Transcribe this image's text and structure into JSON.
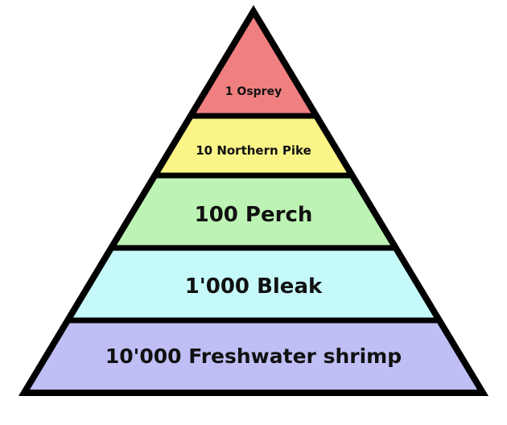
{
  "diagram": {
    "tiers": [
      {
        "label": "1 Osprey",
        "color": "#f08080"
      },
      {
        "label": "10 Northern Pike",
        "color": "#faf586"
      },
      {
        "label": "100 Perch",
        "color": "#bdf3b4"
      },
      {
        "label": "1'000 Bleak",
        "color": "#c6fafa"
      },
      {
        "label": "10'000 Freshwater shrimp",
        "color": "#bfbff5"
      }
    ],
    "outline_color": "#000000"
  }
}
